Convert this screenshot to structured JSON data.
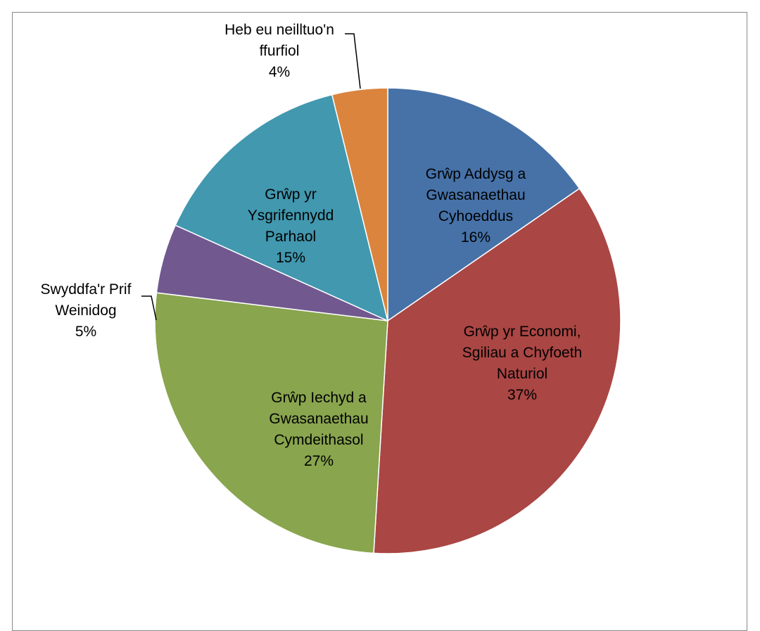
{
  "chart_data": {
    "type": "pie",
    "title": "",
    "slices": [
      {
        "label_lines": [
          "Grŵp Addysg a",
          "Gwasanaethau",
          "Cyhoeddus"
        ],
        "value": 16,
        "percent_label": "16%",
        "color": "#4672A8"
      },
      {
        "label_lines": [
          "Grŵp yr Economi,",
          "Sgiliau a Chyfoeth",
          "Naturiol"
        ],
        "value": 37,
        "percent_label": "37%",
        "color": "#AA4644"
      },
      {
        "label_lines": [
          "Grŵp Iechyd a",
          "Gwasanaethau",
          "Cymdeithasol"
        ],
        "value": 27,
        "percent_label": "27%",
        "color": "#89A54E"
      },
      {
        "label_lines": [
          "Swyddfa'r Prif",
          "Weinidog"
        ],
        "value": 5,
        "percent_label": "5%",
        "color": "#71588F"
      },
      {
        "label_lines": [
          "Grŵp yr",
          "Ysgrifennydd",
          "Parhaol"
        ],
        "value": 15,
        "percent_label": "15%",
        "color": "#4198AF"
      },
      {
        "label_lines": [
          "Heb eu neilltuo'n",
          "ffurfiol"
        ],
        "value": 4,
        "percent_label": "4%",
        "color": "#DB843D"
      }
    ],
    "legend": "none",
    "data_labels": "category and percentage"
  }
}
